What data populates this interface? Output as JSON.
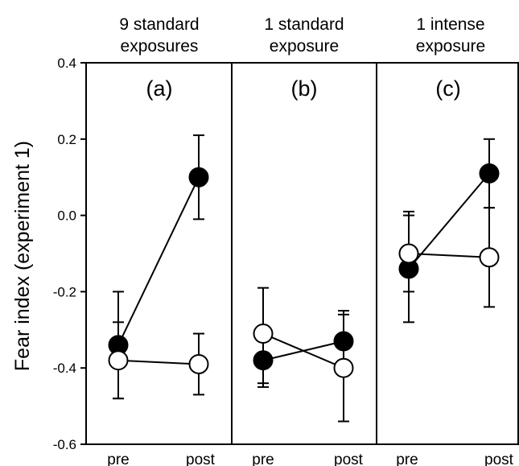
{
  "chart_data": {
    "type": "line",
    "ylabel": "Fear index (experiment 1)",
    "ylim": [
      -0.6,
      0.4
    ],
    "yticks": [
      "0.4",
      "0.2",
      "0.0",
      "-0.2",
      "-0.4",
      "-0.6"
    ],
    "ytick_values": [
      0.4,
      0.2,
      0.0,
      -0.2,
      -0.4,
      -0.6
    ],
    "categories": [
      "pre",
      "post"
    ],
    "panels": [
      {
        "title_line1": "9 standard",
        "title_line2": "exposures",
        "label": "(a)",
        "series": [
          {
            "marker": "filled",
            "values": [
              -0.34,
              0.1
            ],
            "err_low": [
              -0.48,
              -0.01
            ],
            "err_high": [
              -0.2,
              0.21
            ]
          },
          {
            "marker": "open",
            "values": [
              -0.38,
              -0.39
            ],
            "err_low": [
              -0.48,
              -0.47
            ],
            "err_high": [
              -0.28,
              -0.31
            ]
          }
        ]
      },
      {
        "title_line1": "1 standard",
        "title_line2": "exposure",
        "label": "(b)",
        "series": [
          {
            "marker": "filled",
            "values": [
              -0.38,
              -0.33
            ],
            "err_low": [
              -0.45,
              -0.4
            ],
            "err_high": [
              -0.31,
              -0.25
            ]
          },
          {
            "marker": "open",
            "values": [
              -0.31,
              -0.4
            ],
            "err_low": [
              -0.44,
              -0.54
            ],
            "err_high": [
              -0.19,
              -0.26
            ]
          }
        ]
      },
      {
        "title_line1": "1 intense",
        "title_line2": "exposure",
        "label": "(c)",
        "series": [
          {
            "marker": "filled",
            "values": [
              -0.14,
              0.11
            ],
            "err_low": [
              -0.28,
              0.02
            ],
            "err_high": [
              0.0,
              0.2
            ]
          },
          {
            "marker": "open",
            "values": [
              -0.1,
              -0.11
            ],
            "err_low": [
              -0.2,
              -0.24
            ],
            "err_high": [
              0.01,
              0.02
            ]
          }
        ]
      }
    ],
    "colors": {
      "filled": "#000000",
      "open": "#ffffff",
      "stroke": "#000000"
    }
  }
}
